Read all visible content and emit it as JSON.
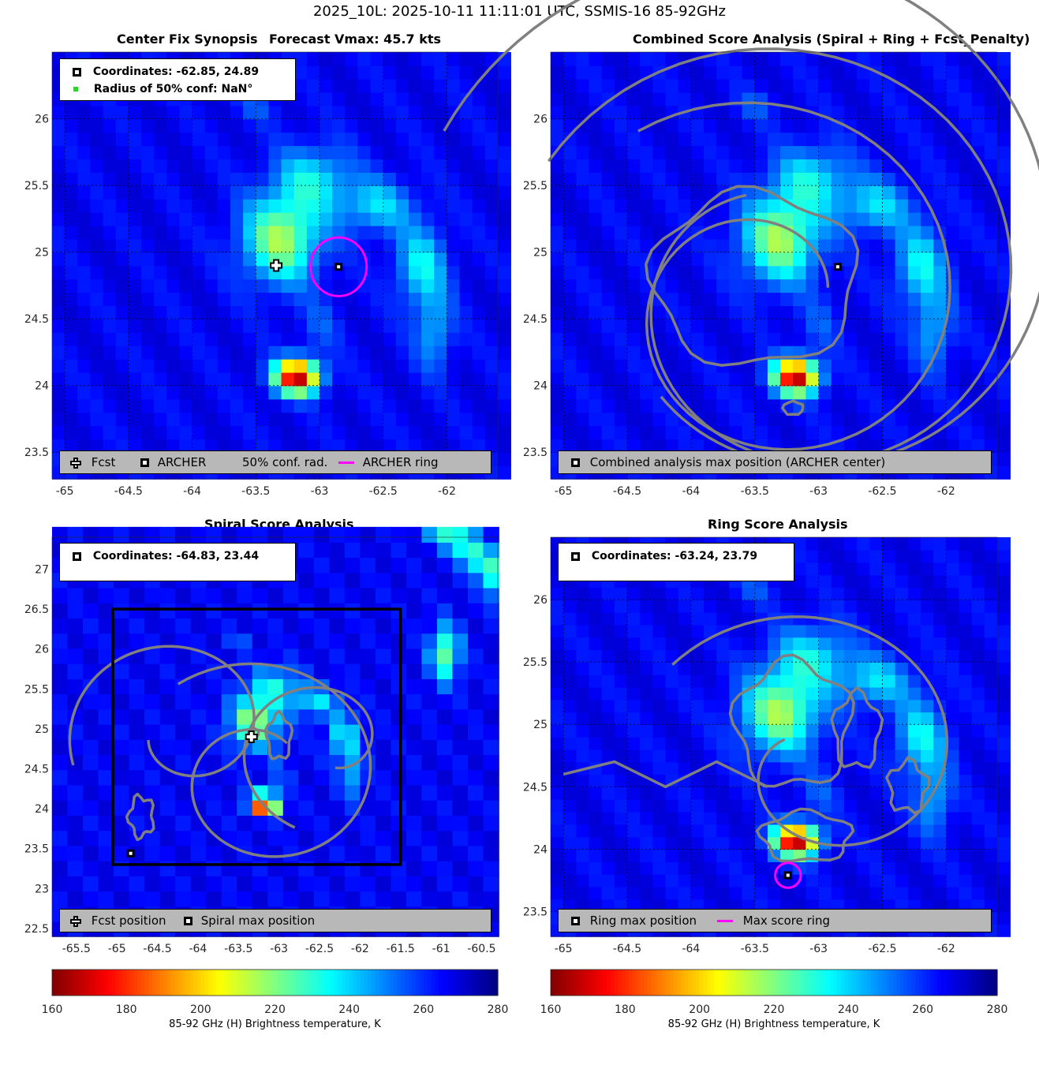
{
  "figure": {
    "title": "2025_10L: 2025-10-11 11:11:01 UTC, SSMIS-16 85-92GHz"
  },
  "colors": {
    "archer_ring": "#ff00ff",
    "contour": "#808080",
    "legend_bottom_bg": "#b8b8b8",
    "colormap": [
      "#800000",
      "#ff0000",
      "#ff8000",
      "#ffff00",
      "#80ff80",
      "#00ffff",
      "#0080ff",
      "#0000ff",
      "#000080"
    ]
  },
  "icons": {
    "fcst": "white-cross-icon",
    "archer": "black-square-icon",
    "conf_radius": "green-dot-icon",
    "ring": "magenta-line-icon"
  },
  "panels": {
    "synopsis": {
      "title_left": "Center Fix Synopsis",
      "title_right": "Forecast Vmax: 45.7 kts",
      "legend_top": {
        "coordinates": "Coordinates: -62.85, 24.89",
        "radius": "Radius of 50% conf: NaN°"
      },
      "legend_bottom": {
        "fcst": "Fcst",
        "archer": "ARCHER",
        "conf": "50% conf. rad.",
        "ring": "ARCHER ring"
      }
    },
    "combined": {
      "title": "Combined Score Analysis (Spiral + Ring + Fcst_Penalty)",
      "legend_bottom": {
        "max": "Combined analysis max position (ARCHER center)"
      }
    },
    "spiral": {
      "title": "Spiral Score Analysis",
      "legend_top": {
        "coordinates": "Coordinates: -64.83, 23.44"
      },
      "legend_bottom": {
        "fcst": "Fcst position",
        "max": "Spiral max position"
      }
    },
    "ring": {
      "title": "Ring Score Analysis",
      "legend_top": {
        "coordinates": "Coordinates: -63.24, 23.79"
      },
      "legend_bottom": {
        "max": "Ring max position",
        "ring": "Max score ring"
      }
    }
  },
  "colorbars": [
    {
      "label": "85-92 GHz (H) Brightness temperature, K",
      "ticks": [
        160,
        180,
        200,
        220,
        240,
        260,
        280
      ]
    },
    {
      "label": "85-92 GHz (H) Brightness temperature, K",
      "ticks": [
        160,
        180,
        200,
        220,
        240,
        260,
        280
      ]
    }
  ],
  "chart_data": [
    {
      "type": "heatmap",
      "panel": "synopsis",
      "xlim": [
        -65.1,
        -61.6
      ],
      "ylim": [
        23.3,
        26.5
      ],
      "xticks": [
        -65,
        -64.5,
        -64,
        -63.5,
        -63,
        -62.5,
        -62
      ],
      "yticks": [
        23.5,
        24,
        24.5,
        25,
        25.5,
        26
      ],
      "grid": true,
      "points": {
        "fcst": {
          "lon": -63.34,
          "lat": 24.9
        },
        "archer": {
          "lon": -62.85,
          "lat": 24.89
        }
      },
      "ring": {
        "lon": -62.85,
        "lat": 24.89,
        "radius_deg": 0.22
      }
    },
    {
      "type": "heatmap",
      "panel": "combined",
      "xlim": [
        -65.1,
        -61.6
      ],
      "ylim": [
        23.3,
        26.5
      ],
      "xticks": [
        -65,
        -64.5,
        -64,
        -63.5,
        -63,
        -62.5,
        -62
      ],
      "yticks": [
        23.5,
        24,
        24.5,
        25,
        25.5,
        26
      ],
      "grid": true,
      "points": {
        "max": {
          "lon": -62.85,
          "lat": 24.89
        }
      }
    },
    {
      "type": "heatmap",
      "panel": "spiral",
      "xlim": [
        -65.8,
        -60.3
      ],
      "ylim": [
        22.4,
        27.4
      ],
      "xticks": [
        -65.5,
        -65,
        -64.5,
        -64,
        -63.5,
        -63,
        -62.5,
        -62,
        -61.5,
        -61,
        -60.5
      ],
      "yticks": [
        22.5,
        23,
        23.5,
        24,
        24.5,
        25,
        25.5,
        26,
        26.5,
        27
      ],
      "grid": false,
      "box": {
        "lon0": -65.05,
        "lat0": 23.3,
        "lon1": -61.5,
        "lat1": 26.5
      },
      "points": {
        "fcst": {
          "lon": -63.34,
          "lat": 24.9
        },
        "max": {
          "lon": -64.83,
          "lat": 23.44
        }
      }
    },
    {
      "type": "heatmap",
      "panel": "ring",
      "xlim": [
        -65.1,
        -61.6
      ],
      "ylim": [
        23.3,
        26.5
      ],
      "xticks": [
        -65,
        -64.5,
        -64,
        -63.5,
        -63,
        -62.5,
        -62
      ],
      "yticks": [
        23.5,
        24,
        24.5,
        25,
        25.5,
        26
      ],
      "grid": true,
      "points": {
        "max": {
          "lon": -63.24,
          "lat": 23.79
        }
      },
      "ring": {
        "lon": -63.24,
        "lat": 23.79,
        "radius_deg": 0.1
      }
    }
  ]
}
